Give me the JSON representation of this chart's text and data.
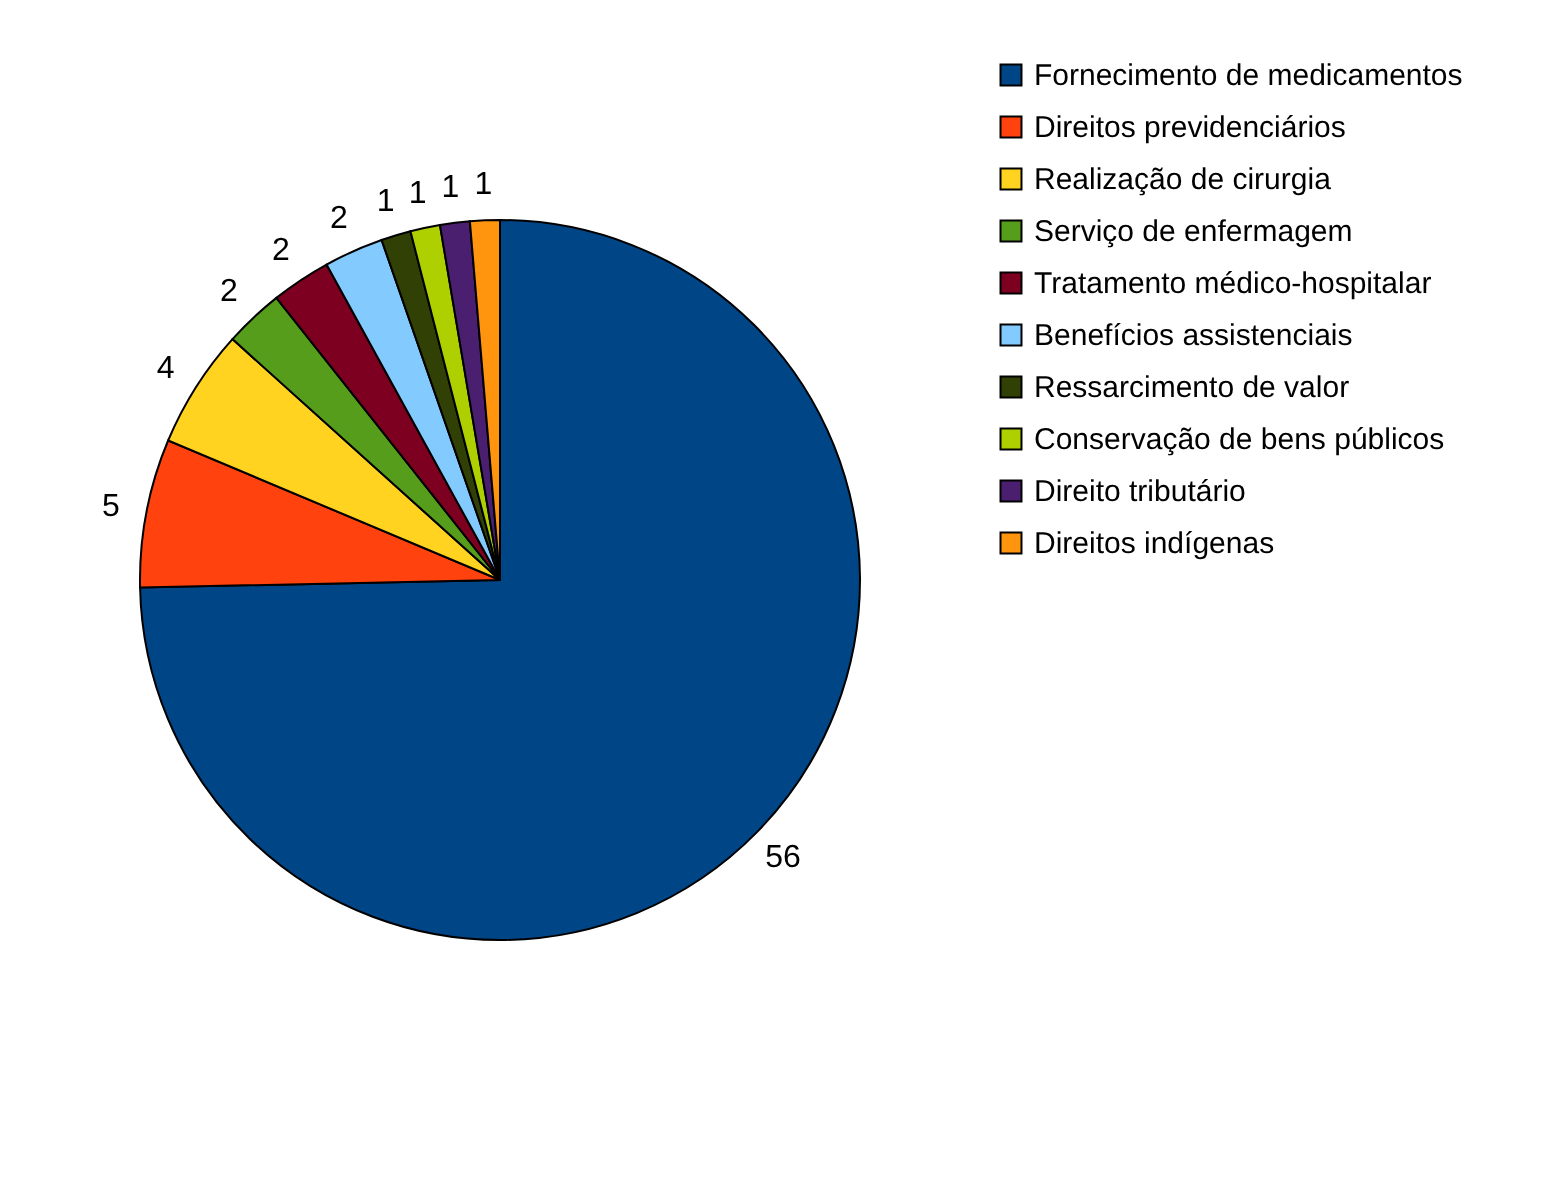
{
  "chart_data": {
    "type": "pie",
    "categories": [
      "Fornecimento de medicamentos",
      "Direitos previdenciários",
      "Realização de cirurgia",
      "Serviço de enfermagem",
      "Tratamento médico-hospitalar",
      "Benefícios assistenciais",
      "Ressarcimento de valor",
      "Conservação de bens públicos",
      "Direito tributário",
      "Direitos indígenas"
    ],
    "values": [
      56,
      5,
      4,
      2,
      2,
      2,
      1,
      1,
      1,
      1
    ],
    "colors": [
      "#004586",
      "#ff420e",
      "#ffd320",
      "#579d1c",
      "#7e0021",
      "#83caff",
      "#314004",
      "#aecf00",
      "#4b1f6f",
      "#ff950e"
    ],
    "data_labels": true,
    "legend": "right"
  }
}
